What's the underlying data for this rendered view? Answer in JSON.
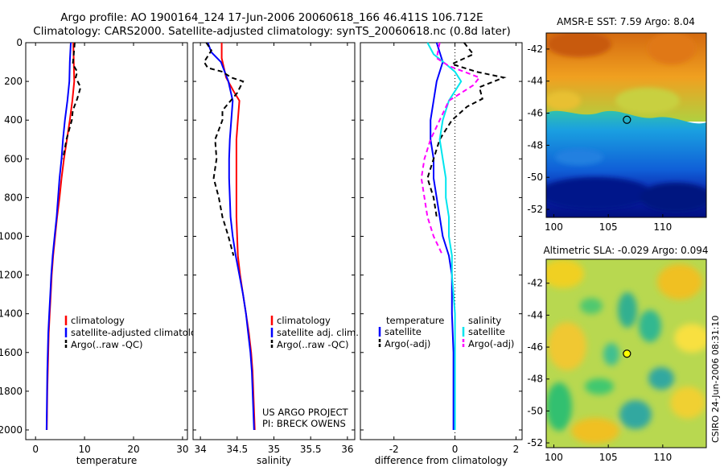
{
  "header": {
    "line1": "Argo profile: AO 1900164_124 17-Jun-2006 20060618_166 46.411S 106.712E",
    "line2": "Climatology: CARS2000. Satellite-adjusted climatology: synTS_20060618.nc (0.8d later)"
  },
  "credit": "CSIRO 24-Jun-2006 08:31:10",
  "colors": {
    "climatology": "#ff0000",
    "satellite": "#0000ff",
    "argo": "#000000",
    "satellite_salinity": "#00e5ee",
    "argo_salinity": "#ff00ff"
  },
  "chart_data": [
    {
      "type": "line",
      "xlabel": "temperature",
      "xlim": [
        -2,
        31
      ],
      "xticks": [
        "0",
        "10",
        "20",
        "30"
      ],
      "xtick_values": [
        0,
        10,
        20,
        30
      ],
      "ylim": [
        0,
        2050
      ],
      "yreversed": true,
      "yticks": [
        "0",
        "200",
        "400",
        "600",
        "800",
        "1000",
        "1200",
        "1400",
        "1600",
        "1800",
        "2000"
      ],
      "ytick_values": [
        0,
        200,
        400,
        600,
        800,
        1000,
        1200,
        1400,
        1600,
        1800,
        2000
      ],
      "legend": [
        "climatology",
        "satellite-adjusted climatology",
        "Argo(..raw -QC)"
      ],
      "series": [
        {
          "name": "climatology",
          "color": "#ff0000",
          "dash": "",
          "points": [
            [
              7.7,
              0
            ],
            [
              7.8,
              100
            ],
            [
              7.9,
              200
            ],
            [
              7.5,
              300
            ],
            [
              7.0,
              400
            ],
            [
              6.4,
              500
            ],
            [
              5.8,
              600
            ],
            [
              5.3,
              700
            ],
            [
              4.9,
              800
            ],
            [
              4.4,
              900
            ],
            [
              4.0,
              1000
            ],
            [
              3.6,
              1100
            ],
            [
              3.3,
              1200
            ],
            [
              3.1,
              1300
            ],
            [
              2.9,
              1400
            ],
            [
              2.7,
              1500
            ],
            [
              2.6,
              1600
            ],
            [
              2.5,
              1700
            ],
            [
              2.4,
              1800
            ],
            [
              2.35,
              1900
            ],
            [
              2.3,
              2000
            ]
          ]
        },
        {
          "name": "satellite-adjusted climatology",
          "color": "#0000ff",
          "dash": "",
          "points": [
            [
              7.2,
              0
            ],
            [
              7.0,
              100
            ],
            [
              6.9,
              200
            ],
            [
              6.5,
              300
            ],
            [
              6.0,
              400
            ],
            [
              5.6,
              500
            ],
            [
              5.3,
              600
            ],
            [
              4.9,
              700
            ],
            [
              4.6,
              800
            ],
            [
              4.3,
              900
            ],
            [
              3.9,
              1000
            ],
            [
              3.5,
              1100
            ],
            [
              3.2,
              1200
            ],
            [
              3.0,
              1300
            ],
            [
              2.8,
              1400
            ],
            [
              2.6,
              1500
            ],
            [
              2.5,
              1600
            ],
            [
              2.4,
              1700
            ],
            [
              2.35,
              1800
            ],
            [
              2.3,
              1900
            ],
            [
              2.25,
              2000
            ]
          ]
        },
        {
          "name": "Argo(..raw -QC)",
          "color": "#000000",
          "dash": "6,4",
          "points": [
            [
              8.0,
              0
            ],
            [
              7.8,
              60
            ],
            [
              7.6,
              110
            ],
            [
              8.5,
              150
            ],
            [
              8.2,
              180
            ],
            [
              9.2,
              230
            ],
            [
              8.5,
              290
            ],
            [
              7.6,
              350
            ],
            [
              7.4,
              400
            ],
            [
              6.3,
              500
            ],
            [
              5.6,
              600
            ]
          ]
        }
      ]
    },
    {
      "type": "line",
      "xlabel": "salinity",
      "xlim": [
        33.9,
        36.1
      ],
      "xticks": [
        "34",
        "34.5",
        "35",
        "35.5",
        "36"
      ],
      "xtick_values": [
        34,
        34.5,
        35,
        35.5,
        36
      ],
      "ylim": [
        0,
        2050
      ],
      "yreversed": true,
      "legend": [
        "climatology",
        "satellite adj. clim.",
        "Argo(..raw -QC)"
      ],
      "annotation": [
        "US ARGO PROJECT",
        "PI: BRECK OWENS"
      ],
      "series": [
        {
          "name": "climatology",
          "color": "#ff0000",
          "dash": "",
          "points": [
            [
              34.29,
              0
            ],
            [
              34.29,
              80
            ],
            [
              34.35,
              180
            ],
            [
              34.45,
              250
            ],
            [
              34.53,
              300
            ],
            [
              34.51,
              400
            ],
            [
              34.49,
              500
            ],
            [
              34.49,
              600
            ],
            [
              34.49,
              700
            ],
            [
              34.49,
              800
            ],
            [
              34.49,
              900
            ],
            [
              34.5,
              1000
            ],
            [
              34.51,
              1100
            ],
            [
              34.54,
              1200
            ],
            [
              34.58,
              1300
            ],
            [
              34.62,
              1400
            ],
            [
              34.66,
              1500
            ],
            [
              34.69,
              1600
            ],
            [
              34.71,
              1700
            ],
            [
              34.72,
              1800
            ],
            [
              34.73,
              1900
            ],
            [
              34.74,
              2000
            ]
          ]
        },
        {
          "name": "satellite adj. clim.",
          "color": "#0000ff",
          "dash": "",
          "points": [
            [
              34.1,
              0
            ],
            [
              34.15,
              50
            ],
            [
              34.28,
              100
            ],
            [
              34.38,
              200
            ],
            [
              34.44,
              300
            ],
            [
              34.42,
              400
            ],
            [
              34.4,
              500
            ],
            [
              34.39,
              600
            ],
            [
              34.39,
              700
            ],
            [
              34.4,
              800
            ],
            [
              34.41,
              900
            ],
            [
              34.44,
              1000
            ],
            [
              34.48,
              1100
            ],
            [
              34.53,
              1200
            ],
            [
              34.58,
              1300
            ],
            [
              34.62,
              1400
            ],
            [
              34.65,
              1500
            ],
            [
              34.68,
              1600
            ],
            [
              34.7,
              1700
            ],
            [
              34.71,
              1800
            ],
            [
              34.72,
              1900
            ],
            [
              34.73,
              2000
            ]
          ]
        },
        {
          "name": "Argo(..raw -QC)",
          "color": "#000000",
          "dash": "6,4",
          "points": [
            [
              34.08,
              0
            ],
            [
              34.15,
              40
            ],
            [
              34.05,
              100
            ],
            [
              34.1,
              130
            ],
            [
              34.3,
              150
            ],
            [
              34.42,
              180
            ],
            [
              34.58,
              200
            ],
            [
              34.5,
              260
            ],
            [
              34.3,
              350
            ],
            [
              34.3,
              400
            ],
            [
              34.25,
              450
            ],
            [
              34.2,
              500
            ],
            [
              34.22,
              600
            ],
            [
              34.18,
              700
            ],
            [
              34.25,
              800
            ],
            [
              34.3,
              900
            ],
            [
              34.38,
              1000
            ],
            [
              34.45,
              1100
            ]
          ]
        }
      ]
    },
    {
      "type": "line",
      "xlabel": "difference from climatology",
      "xlim": [
        -3.1,
        2.2
      ],
      "xticks": [
        "-2",
        "0",
        "2"
      ],
      "xtick_values": [
        -2,
        0,
        2
      ],
      "ylim": [
        0,
        2050
      ],
      "yreversed": true,
      "zero_line": true,
      "legend_groups": [
        {
          "title": "temperature",
          "items": [
            "satellite",
            "Argo(-adj)"
          ]
        },
        {
          "title": "salinity",
          "items": [
            "satellite",
            "Argo(-adj)"
          ]
        }
      ],
      "series": [
        {
          "name": "temperature satellite",
          "color": "#0000ff",
          "dash": "",
          "points": [
            [
              -0.6,
              0
            ],
            [
              -0.4,
              100
            ],
            [
              -0.6,
              200
            ],
            [
              -0.7,
              300
            ],
            [
              -0.8,
              400
            ],
            [
              -0.8,
              500
            ],
            [
              -0.7,
              600
            ],
            [
              -0.7,
              700
            ],
            [
              -0.6,
              800
            ],
            [
              -0.5,
              900
            ],
            [
              -0.4,
              1000
            ],
            [
              -0.2,
              1100
            ],
            [
              -0.1,
              1200
            ],
            [
              -0.1,
              1400
            ],
            [
              -0.05,
              1600
            ],
            [
              -0.05,
              1800
            ],
            [
              -0.05,
              2000
            ]
          ]
        },
        {
          "name": "temperature Argo(-adj)",
          "color": "#000000",
          "dash": "6,4",
          "points": [
            [
              0.3,
              0
            ],
            [
              0.6,
              60
            ],
            [
              -0.1,
              110
            ],
            [
              0.7,
              150
            ],
            [
              1.6,
              180
            ],
            [
              0.8,
              230
            ],
            [
              0.9,
              290
            ],
            [
              0.4,
              330
            ],
            [
              -0.1,
              400
            ],
            [
              -0.5,
              500
            ],
            [
              -0.7,
              600
            ],
            [
              -0.9,
              700
            ],
            [
              -0.7,
              800
            ],
            [
              -0.6,
              900
            ]
          ]
        },
        {
          "name": "salinity satellite",
          "color": "#00e5ee",
          "dash": "",
          "points": [
            [
              -0.9,
              0
            ],
            [
              -0.7,
              60
            ],
            [
              -0.3,
              110
            ],
            [
              0,
              150
            ],
            [
              0.2,
              200
            ],
            [
              -0.2,
              300
            ],
            [
              -0.4,
              400
            ],
            [
              -0.5,
              500
            ],
            [
              -0.4,
              600
            ],
            [
              -0.3,
              700
            ],
            [
              -0.3,
              800
            ],
            [
              -0.2,
              900
            ],
            [
              -0.2,
              1000
            ],
            [
              -0.1,
              1100
            ],
            [
              -0.1,
              1200
            ],
            [
              0,
              1400
            ],
            [
              0,
              1600
            ],
            [
              0,
              1800
            ],
            [
              0,
              2000
            ]
          ]
        },
        {
          "name": "salinity Argo(-adj)",
          "color": "#ff00ff",
          "dash": "6,4",
          "points": [
            [
              -0.5,
              0
            ],
            [
              -0.6,
              80
            ],
            [
              -0.2,
              120
            ],
            [
              0.8,
              180
            ],
            [
              0.6,
              220
            ],
            [
              -0.2,
              300
            ],
            [
              -0.5,
              400
            ],
            [
              -0.8,
              500
            ],
            [
              -1.0,
              600
            ],
            [
              -1.1,
              700
            ],
            [
              -1.0,
              800
            ],
            [
              -0.9,
              900
            ],
            [
              -0.7,
              1000
            ],
            [
              -0.4,
              1100
            ]
          ]
        }
      ]
    },
    {
      "type": "heatmap",
      "title": "AMSR-E SST: 7.59 Argo: 8.04",
      "xlim": [
        99.3,
        114
      ],
      "ylim": [
        -52.5,
        -41
      ],
      "xticks": [
        "100",
        "105",
        "110"
      ],
      "xtick_values": [
        100,
        105,
        110
      ],
      "yticks": [
        "-42",
        "-44",
        "-46",
        "-48",
        "-50",
        "-52"
      ],
      "ytick_values": [
        -42,
        -44,
        -46,
        -48,
        -50,
        -52
      ],
      "marker": {
        "lon": 106.712,
        "lat": -46.411
      }
    },
    {
      "type": "heatmap",
      "title": "Altimetric SLA: -0.029 Argo: 0.094",
      "xlim": [
        99.3,
        114
      ],
      "ylim": [
        -52.3,
        -40.5
      ],
      "xticks": [
        "100",
        "105",
        "110"
      ],
      "xtick_values": [
        100,
        105,
        110
      ],
      "yticks": [
        "-42",
        "-44",
        "-46",
        "-48",
        "-50",
        "-52"
      ],
      "ytick_values": [
        -42,
        -44,
        -46,
        -48,
        -50,
        -52
      ],
      "marker": {
        "lon": 106.712,
        "lat": -46.411
      }
    }
  ]
}
